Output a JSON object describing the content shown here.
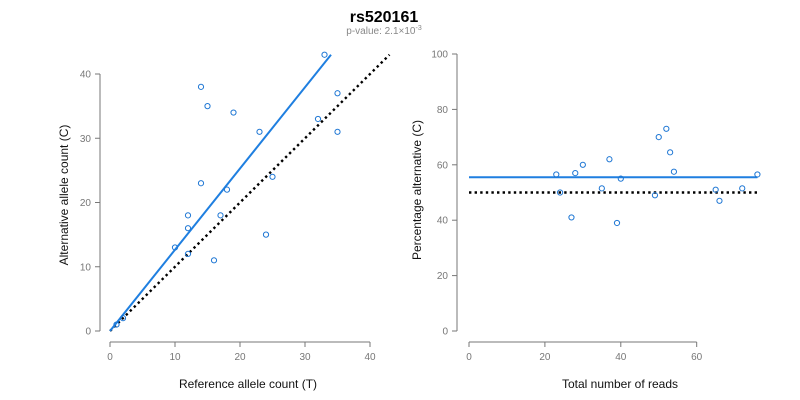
{
  "title": "rs520161",
  "subtitle": {
    "prefix": "p-value: 2.1×10",
    "exponent": "-3"
  },
  "colors": {
    "points": "#1f77d4",
    "fit_line": "#1f7fe0",
    "reference_line": "#000000",
    "axis": "#777777"
  },
  "chart_data": [
    {
      "type": "scatter",
      "xlabel": "Reference allele count (T)",
      "ylabel": "Alternative allele count (C)",
      "xlim": [
        0,
        40
      ],
      "ylim": [
        0,
        40
      ],
      "xticks": [
        0,
        10,
        20,
        30,
        40
      ],
      "yticks": [
        0,
        10,
        20,
        30,
        40
      ],
      "points": [
        [
          1,
          1
        ],
        [
          2,
          2
        ],
        [
          10,
          13
        ],
        [
          12,
          12
        ],
        [
          12,
          16
        ],
        [
          12,
          18
        ],
        [
          14,
          23
        ],
        [
          14,
          38
        ],
        [
          15,
          35
        ],
        [
          16,
          11
        ],
        [
          17,
          18
        ],
        [
          18,
          22
        ],
        [
          19,
          34
        ],
        [
          23,
          31
        ],
        [
          24,
          15
        ],
        [
          25,
          24
        ],
        [
          32,
          33
        ],
        [
          33,
          43
        ],
        [
          35,
          37
        ],
        [
          35,
          31
        ]
      ],
      "fit_line": {
        "x": [
          0,
          34
        ],
        "y": [
          0,
          43
        ]
      },
      "reference_line": {
        "x": [
          0,
          43
        ],
        "y": [
          0,
          43
        ]
      },
      "grid": false
    },
    {
      "type": "scatter",
      "xlabel": "Total number of reads",
      "ylabel": "Percentage alternative (C)",
      "xlim": [
        0,
        78
      ],
      "ylim": [
        0,
        100
      ],
      "xticks": [
        0,
        20,
        40,
        60
      ],
      "yticks": [
        0,
        20,
        40,
        60,
        80,
        100
      ],
      "points": [
        [
          23,
          56.5
        ],
        [
          24,
          50
        ],
        [
          27,
          41
        ],
        [
          28,
          57
        ],
        [
          30,
          60
        ],
        [
          35,
          51.5
        ],
        [
          37,
          62
        ],
        [
          39,
          39
        ],
        [
          40,
          55
        ],
        [
          49,
          49
        ],
        [
          50,
          70
        ],
        [
          52,
          73
        ],
        [
          53,
          64.5
        ],
        [
          54,
          57.5
        ],
        [
          65,
          51
        ],
        [
          66,
          47
        ],
        [
          72,
          51.5
        ],
        [
          76,
          56.5
        ]
      ],
      "fit_line": {
        "x": [
          0,
          76
        ],
        "y": [
          55.5,
          55.5
        ]
      },
      "reference_line": {
        "x": [
          0,
          76
        ],
        "y": [
          50,
          50
        ]
      },
      "grid": false
    }
  ]
}
